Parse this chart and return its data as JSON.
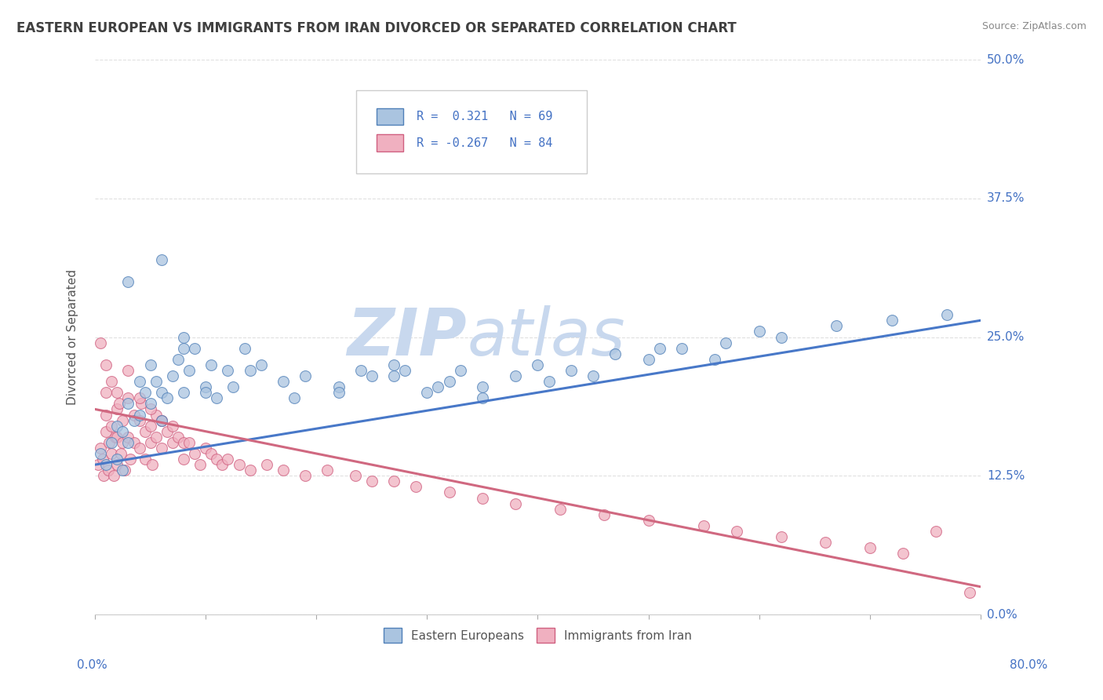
{
  "title": "EASTERN EUROPEAN VS IMMIGRANTS FROM IRAN DIVORCED OR SEPARATED CORRELATION CHART",
  "source": "Source: ZipAtlas.com",
  "ylabel": "Divorced or Separated",
  "xlim": [
    0.0,
    80.0
  ],
  "ylim": [
    0.0,
    50.0
  ],
  "yticks": [
    0.0,
    12.5,
    25.0,
    37.5,
    50.0
  ],
  "ytick_labels": [
    "0.0%",
    "12.5%",
    "25.0%",
    "37.5%",
    "50.0%"
  ],
  "background_color": "#ffffff",
  "watermark_zip": "ZIP",
  "watermark_atlas": "atlas",
  "watermark_color_zip": "#c8d8ee",
  "watermark_color_atlas": "#c8d8ee",
  "legend_r1": "R =  0.321",
  "legend_n1": "N = 69",
  "legend_r2": "R = -0.267",
  "legend_n2": "N = 84",
  "blue_color": "#aac4e0",
  "pink_color": "#f0b0c0",
  "blue_edge_color": "#5080b8",
  "pink_edge_color": "#d06080",
  "blue_line_color": "#4878c8",
  "pink_line_color": "#d06880",
  "legend_text_color": "#4472c4",
  "title_color": "#404040",
  "axis_label_color": "#4472c4",
  "blue_scatter_x": [
    0.5,
    1.0,
    1.5,
    2.0,
    2.0,
    2.5,
    2.5,
    3.0,
    3.0,
    3.5,
    4.0,
    4.0,
    4.5,
    5.0,
    5.0,
    5.5,
    6.0,
    6.0,
    6.5,
    7.0,
    7.5,
    8.0,
    8.0,
    8.5,
    9.0,
    10.0,
    10.5,
    11.0,
    12.0,
    12.5,
    13.5,
    15.0,
    17.0,
    19.0,
    22.0,
    24.0,
    25.0,
    27.0,
    28.0,
    30.0,
    32.0,
    33.0,
    35.0,
    38.0,
    40.0,
    43.0,
    47.0,
    50.0,
    53.0,
    57.0,
    60.0,
    3.0,
    6.0,
    8.0,
    10.0,
    14.0,
    18.0,
    22.0,
    27.0,
    31.0,
    35.0,
    41.0,
    45.0,
    51.0,
    56.0,
    62.0,
    67.0,
    72.0,
    77.0
  ],
  "blue_scatter_y": [
    14.5,
    13.5,
    15.5,
    17.0,
    14.0,
    16.5,
    13.0,
    19.0,
    15.5,
    17.5,
    21.0,
    18.0,
    20.0,
    22.5,
    19.0,
    21.0,
    20.0,
    17.5,
    19.5,
    21.5,
    23.0,
    25.0,
    20.0,
    22.0,
    24.0,
    20.5,
    22.5,
    19.5,
    22.0,
    20.5,
    24.0,
    22.5,
    21.0,
    21.5,
    20.5,
    22.0,
    21.5,
    22.5,
    22.0,
    20.0,
    21.0,
    22.0,
    20.5,
    21.5,
    22.5,
    22.0,
    23.5,
    23.0,
    24.0,
    24.5,
    25.5,
    30.0,
    32.0,
    24.0,
    20.0,
    22.0,
    19.5,
    20.0,
    21.5,
    20.5,
    19.5,
    21.0,
    21.5,
    24.0,
    23.0,
    25.0,
    26.0,
    26.5,
    27.0
  ],
  "pink_scatter_x": [
    0.3,
    0.5,
    0.7,
    0.8,
    1.0,
    1.0,
    1.0,
    1.2,
    1.3,
    1.5,
    1.5,
    1.7,
    1.8,
    2.0,
    2.0,
    2.0,
    2.2,
    2.3,
    2.5,
    2.5,
    2.7,
    3.0,
    3.0,
    3.2,
    3.5,
    3.5,
    4.0,
    4.0,
    4.2,
    4.5,
    4.5,
    5.0,
    5.0,
    5.2,
    5.5,
    5.5,
    6.0,
    6.0,
    6.5,
    7.0,
    7.0,
    7.5,
    8.0,
    8.0,
    8.5,
    9.0,
    9.5,
    10.0,
    10.5,
    11.0,
    11.5,
    12.0,
    13.0,
    14.0,
    15.5,
    17.0,
    19.0,
    21.0,
    23.5,
    25.0,
    27.0,
    29.0,
    32.0,
    35.0,
    38.0,
    42.0,
    46.0,
    50.0,
    55.0,
    58.0,
    62.0,
    66.0,
    70.0,
    73.0,
    76.0,
    79.0,
    0.5,
    1.0,
    1.5,
    2.0,
    3.0,
    4.0,
    5.0,
    6.0
  ],
  "pink_scatter_y": [
    13.5,
    15.0,
    14.0,
    12.5,
    16.5,
    18.0,
    20.0,
    13.0,
    15.5,
    17.0,
    14.5,
    12.5,
    16.0,
    18.5,
    16.0,
    13.5,
    19.0,
    14.5,
    17.5,
    15.5,
    13.0,
    19.5,
    16.0,
    14.0,
    18.0,
    15.5,
    17.5,
    15.0,
    19.0,
    16.5,
    14.0,
    17.0,
    15.5,
    13.5,
    18.0,
    16.0,
    17.5,
    15.0,
    16.5,
    17.0,
    15.5,
    16.0,
    15.5,
    14.0,
    15.5,
    14.5,
    13.5,
    15.0,
    14.5,
    14.0,
    13.5,
    14.0,
    13.5,
    13.0,
    13.5,
    13.0,
    12.5,
    13.0,
    12.5,
    12.0,
    12.0,
    11.5,
    11.0,
    10.5,
    10.0,
    9.5,
    9.0,
    8.5,
    8.0,
    7.5,
    7.0,
    6.5,
    6.0,
    5.5,
    7.5,
    2.0,
    24.5,
    22.5,
    21.0,
    20.0,
    22.0,
    19.5,
    18.5,
    17.5
  ],
  "blue_trend_x": [
    0.0,
    80.0
  ],
  "blue_trend_y": [
    13.5,
    26.5
  ],
  "pink_trend_x": [
    0.0,
    80.0
  ],
  "pink_trend_y": [
    18.5,
    2.5
  ],
  "xtick_positions": [
    0,
    10,
    20,
    30,
    40,
    50,
    60,
    70,
    80
  ],
  "grid_color": "#dddddd",
  "dot_size": 100
}
